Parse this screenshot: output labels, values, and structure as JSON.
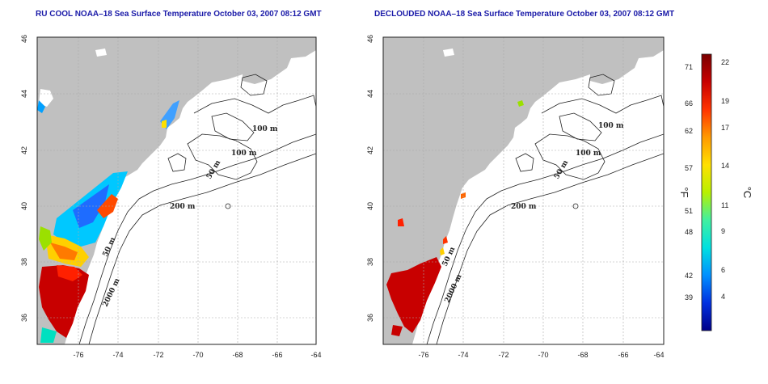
{
  "panels": [
    {
      "title": "RU COOL NOAA–18 Sea Surface Temperature October 03, 2007 08:12 GMT",
      "x_ticks": [
        "-76",
        "-74",
        "-72",
        "-70",
        "-68",
        "-66",
        "-64"
      ],
      "y_ticks": [
        "36",
        "38",
        "40",
        "42",
        "44",
        "46"
      ],
      "contour_labels": [
        "100 m",
        "100 m",
        "50 m",
        "200 m",
        "50 m",
        "2000 m"
      ]
    },
    {
      "title": "DECLOUDED NOAA–18 Sea Surface Temperature October 03, 2007 08:12 GMT",
      "x_ticks": [
        "-76",
        "-74",
        "-72",
        "-70",
        "-68",
        "-66",
        "-64"
      ],
      "y_ticks": [
        "36",
        "38",
        "40",
        "42",
        "44",
        "46"
      ],
      "contour_labels": [
        "100 m",
        "100 m",
        "50 m",
        "200 m",
        "50 m",
        "2000 m"
      ]
    }
  ],
  "colorbar": {
    "fahrenheit_label": "°F",
    "celsius_label": "°C",
    "fahrenheit_ticks": [
      "71",
      "66",
      "62",
      "57",
      "51",
      "48",
      "42",
      "39"
    ],
    "celsius_ticks": [
      "22",
      "19",
      "17",
      "14",
      "11",
      "9",
      "6",
      "4"
    ],
    "colors": [
      "#7a0000",
      "#c80000",
      "#ff3300",
      "#ff9900",
      "#ffe000",
      "#b8f000",
      "#40f0a0",
      "#00e0e0",
      "#0090ff",
      "#0030e0",
      "#000088"
    ]
  },
  "colors": {
    "land": "#c0c0c0",
    "title": "#1a1aa8",
    "contour": "#222222"
  }
}
